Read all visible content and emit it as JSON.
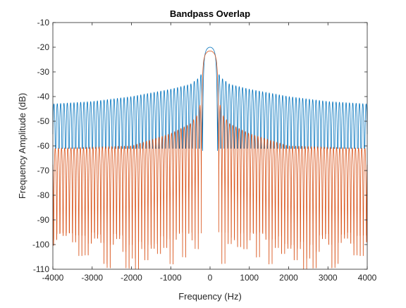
{
  "chart_data": {
    "type": "line",
    "title": "Bandpass Overlap",
    "xlabel": "Frequency (Hz)",
    "ylabel": "Frequency Amplitude (dB)",
    "xlim": [
      -4000,
      4000
    ],
    "ylim": [
      -110,
      -10
    ],
    "xticks": [
      -4000,
      -3000,
      -2000,
      -1000,
      0,
      1000,
      2000,
      3000,
      4000
    ],
    "yticks": [
      -10,
      -20,
      -30,
      -40,
      -50,
      -60,
      -70,
      -80,
      -90,
      -100,
      -110
    ],
    "xtick_labels": [
      "-4000",
      "-3000",
      "-2000",
      "-1000",
      "0",
      "1000",
      "2000",
      "3000",
      "4000"
    ],
    "ytick_labels": [
      "-10",
      "-20",
      "-30",
      "-40",
      "-50",
      "-60",
      "-70",
      "-80",
      "-90",
      "-100",
      "-110"
    ],
    "grid": false,
    "legend": "none",
    "series": [
      {
        "color": "#0072BD",
        "peak_db": -20,
        "mainlobe_halfwidth_hz": 190,
        "lobe_period_hz": 85,
        "envelope": {
          "x": [
            -4000,
            -3000,
            -2000,
            -1000,
            -500,
            -250,
            0,
            250,
            500,
            1000,
            2000,
            3000,
            4000
          ],
          "y": [
            -43,
            -42,
            -40,
            -37,
            -35,
            -32,
            -20,
            -32,
            -35,
            -37,
            -40,
            -42,
            -43
          ]
        },
        "nulls_db": -61
      },
      {
        "color": "#D95319",
        "peak_db": -21.5,
        "mainlobe_halfwidth_hz": 220,
        "lobe_period_hz": 80,
        "envelope": {
          "x": [
            -4000,
            -3000,
            -2000,
            -1000,
            -500,
            -300,
            0,
            300,
            500,
            1000,
            2000,
            3000,
            4000
          ],
          "y": [
            -61,
            -60.5,
            -60,
            -55,
            -51,
            -47,
            -21.5,
            -47,
            -51,
            -55,
            -60,
            -60.5,
            -61
          ]
        },
        "nulls_db": [
          -95,
          -110
        ]
      }
    ]
  }
}
